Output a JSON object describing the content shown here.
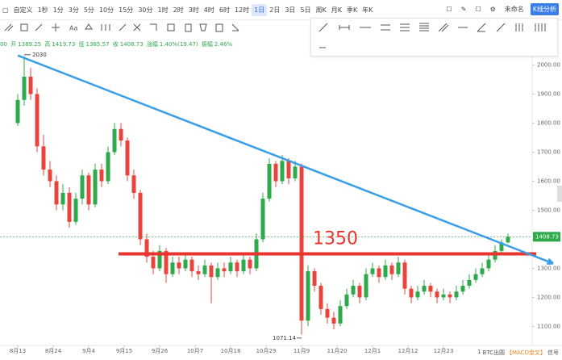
{
  "toolbar": {
    "custom": "自定义",
    "intervals": [
      "1秒",
      "1分",
      "3分",
      "5分",
      "10分",
      "15分",
      "30分",
      "1时",
      "2时",
      "3时",
      "4时",
      "6时",
      "12时",
      "1日",
      "2日",
      "3日",
      "5日",
      "周K",
      "月K",
      "季K",
      "年K"
    ],
    "active": "1日",
    "name": "未命名",
    "analysis": "K线分析"
  },
  "info": {
    "time": "00",
    "open_label": "开",
    "high_label": "高",
    "low_label": "低",
    "close_label": "收",
    "change_label": "涨幅",
    "change": "1.40%(19.47)",
    "amplitude_label": "振幅",
    "amplitude": "2.46%"
  },
  "footer": {
    "count": "1",
    "symbol": "BTC出圆",
    "signal_tag": "【MACD金叉】",
    "signal": "信号"
  },
  "chart_data": {
    "type": "candlestick",
    "up_color": "#2eaa4a",
    "down_color": "#e8443c",
    "candles": [
      [
        1800,
        1900,
        1790,
        1880
      ],
      [
        1880,
        2030,
        1860,
        1960
      ],
      [
        1960,
        1990,
        1880,
        1900
      ],
      [
        1900,
        1920,
        1700,
        1720
      ],
      [
        1720,
        1760,
        1620,
        1640
      ],
      [
        1640,
        1670,
        1580,
        1600
      ],
      [
        1600,
        1620,
        1500,
        1520
      ],
      [
        1520,
        1590,
        1500,
        1560
      ],
      [
        1560,
        1580,
        1440,
        1460
      ],
      [
        1460,
        1560,
        1450,
        1540
      ],
      [
        1540,
        1640,
        1520,
        1620
      ],
      [
        1620,
        1630,
        1500,
        1520
      ],
      [
        1520,
        1660,
        1510,
        1640
      ],
      [
        1640,
        1660,
        1580,
        1600
      ],
      [
        1600,
        1720,
        1590,
        1700
      ],
      [
        1700,
        1800,
        1690,
        1780
      ],
      [
        1780,
        1800,
        1720,
        1740
      ],
      [
        1740,
        1750,
        1600,
        1620
      ],
      [
        1620,
        1640,
        1540,
        1560
      ],
      [
        1560,
        1570,
        1380,
        1400
      ],
      [
        1400,
        1420,
        1320,
        1340
      ],
      [
        1340,
        1360,
        1280,
        1300
      ],
      [
        1300,
        1380,
        1290,
        1360
      ],
      [
        1360,
        1370,
        1250,
        1280
      ],
      [
        1280,
        1340,
        1270,
        1320
      ],
      [
        1320,
        1340,
        1280,
        1300
      ],
      [
        1300,
        1350,
        1290,
        1330
      ],
      [
        1330,
        1340,
        1270,
        1290
      ],
      [
        1290,
        1310,
        1260,
        1280
      ],
      [
        1280,
        1330,
        1270,
        1310
      ],
      [
        1310,
        1320,
        1180,
        1270
      ],
      [
        1270,
        1320,
        1260,
        1300
      ],
      [
        1300,
        1320,
        1270,
        1290
      ],
      [
        1290,
        1340,
        1280,
        1320
      ],
      [
        1320,
        1330,
        1270,
        1290
      ],
      [
        1290,
        1350,
        1280,
        1330
      ],
      [
        1330,
        1340,
        1280,
        1300
      ],
      [
        1300,
        1420,
        1290,
        1400
      ],
      [
        1400,
        1560,
        1390,
        1540
      ],
      [
        1540,
        1680,
        1530,
        1660
      ],
      [
        1660,
        1670,
        1580,
        1600
      ],
      [
        1600,
        1690,
        1590,
        1670
      ],
      [
        1670,
        1680,
        1590,
        1610
      ],
      [
        1610,
        1670,
        1600,
        1650
      ],
      [
        1650,
        1660,
        1071.14,
        1120
      ],
      [
        1120,
        1310,
        1100,
        1290
      ],
      [
        1290,
        1300,
        1220,
        1240
      ],
      [
        1240,
        1250,
        1140,
        1160
      ],
      [
        1160,
        1180,
        1110,
        1130
      ],
      [
        1130,
        1150,
        1090,
        1110
      ],
      [
        1110,
        1190,
        1100,
        1170
      ],
      [
        1170,
        1230,
        1160,
        1210
      ],
      [
        1210,
        1260,
        1200,
        1240
      ],
      [
        1240,
        1250,
        1180,
        1200
      ],
      [
        1200,
        1300,
        1190,
        1280
      ],
      [
        1280,
        1320,
        1270,
        1300
      ],
      [
        1300,
        1310,
        1250,
        1270
      ],
      [
        1270,
        1330,
        1260,
        1310
      ],
      [
        1310,
        1320,
        1260,
        1280
      ],
      [
        1280,
        1340,
        1270,
        1320
      ],
      [
        1320,
        1330,
        1210,
        1230
      ],
      [
        1230,
        1240,
        1180,
        1200
      ],
      [
        1200,
        1240,
        1190,
        1220
      ],
      [
        1220,
        1260,
        1210,
        1240
      ],
      [
        1240,
        1250,
        1200,
        1220
      ],
      [
        1220,
        1230,
        1180,
        1200
      ],
      [
        1200,
        1230,
        1190,
        1210
      ],
      [
        1210,
        1220,
        1180,
        1200
      ],
      [
        1200,
        1240,
        1190,
        1220
      ],
      [
        1220,
        1260,
        1210,
        1240
      ],
      [
        1240,
        1280,
        1230,
        1260
      ],
      [
        1260,
        1300,
        1250,
        1280
      ],
      [
        1280,
        1320,
        1270,
        1300
      ],
      [
        1300,
        1350,
        1290,
        1330
      ],
      [
        1330,
        1380,
        1320,
        1360
      ],
      [
        1360,
        1400,
        1350,
        1389.25
      ],
      [
        1389.25,
        1419.73,
        1385.57,
        1408.73
      ]
    ],
    "xlim": [
      -2.75,
      79.75
    ],
    "xticks": [
      {
        "value": 0,
        "label": "8月13"
      },
      {
        "value": 5.5,
        "label": "8月24"
      },
      {
        "value": 11,
        "label": "9月4"
      },
      {
        "value": 16.5,
        "label": "9月15"
      },
      {
        "value": 22,
        "label": "9月26"
      },
      {
        "value": 27.5,
        "label": "10月7"
      },
      {
        "value": 33,
        "label": "10月18"
      },
      {
        "value": 38.5,
        "label": "10月29"
      },
      {
        "value": 44,
        "label": "11月9"
      },
      {
        "value": 49.5,
        "label": "11月20"
      },
      {
        "value": 55,
        "label": "12月1"
      },
      {
        "value": 60.5,
        "label": "12月12"
      },
      {
        "value": 66,
        "label": "12月23"
      }
    ],
    "ylim": [
      1040,
      2035
    ],
    "yticks": [
      {
        "value": 1100,
        "label": "1100.00"
      },
      {
        "value": 1200,
        "label": "1200.00"
      },
      {
        "value": 1300,
        "label": "1300.00"
      },
      {
        "value": 1400,
        "label": "1400.00"
      },
      {
        "value": 1500,
        "label": "1500.00"
      },
      {
        "value": 1600,
        "label": "1600.00"
      },
      {
        "value": 1700,
        "label": "1700.00"
      },
      {
        "value": 1800,
        "label": "1800.00"
      },
      {
        "value": 1900,
        "label": "1900.00"
      },
      {
        "value": 2000,
        "label": "2000.00"
      }
    ],
    "hline": {
      "value": 1350,
      "color": "#e8342c"
    },
    "trendline": {
      "x": [
        0,
        83
      ],
      "y": [
        2033,
        1317
      ],
      "color": "#3a9ee8"
    },
    "last_price_line": true
  }
}
